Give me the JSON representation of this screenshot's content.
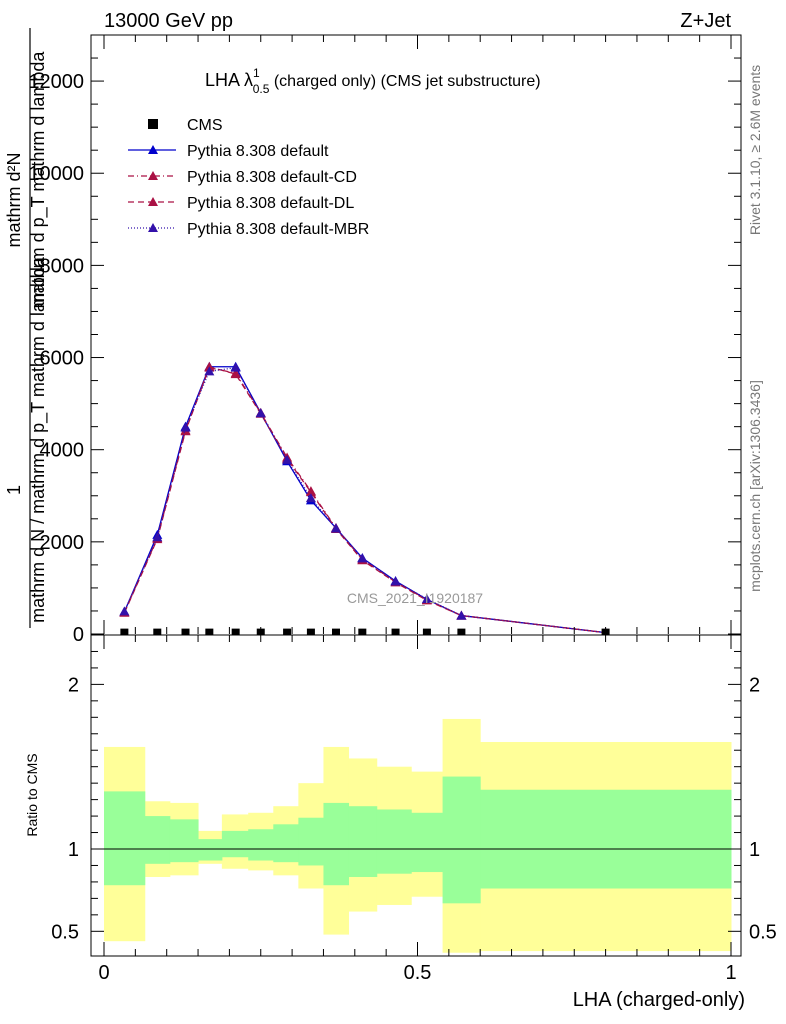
{
  "header": {
    "energy_label": "13000 GeV pp",
    "process_label": "Z+Jet"
  },
  "side_labels": {
    "rivet": "Rivet 3.1.10, ≥ 2.6M events",
    "mcplots": "mcplots.cern.ch [arXiv:1306.3436]"
  },
  "watermark": "CMS_2021_I1920187",
  "chart_data": [
    {
      "type": "line",
      "title": "LHA λ",
      "title_sup": "1",
      "title_sub": "0.5",
      "title_suffix": " (charged only) (CMS jet substructure)",
      "ylabel_numerator": "mathrm d²N",
      "ylabel_denominator": "mathrm d N / mathrm d p_T mathrm d lambda",
      "ylabel_one": "1",
      "ylabel_inner": "mathrm d p_T mathrm d lambda",
      "xlim": [
        0,
        1
      ],
      "ylim": [
        0,
        13000
      ],
      "yticks": [
        0,
        2000,
        4000,
        6000,
        8000,
        10000,
        12000
      ],
      "ytick_labels": [
        "0",
        "2000",
        "4000",
        "6000",
        "8000",
        "10000",
        "12000"
      ],
      "legend_placement": "top-left",
      "data_series": {
        "name": "CMS",
        "x": [
          0.0325,
          0.085,
          0.13,
          0.168,
          0.21,
          0.25,
          0.292,
          0.33,
          0.37,
          0.412,
          0.465,
          0.515,
          0.57,
          0.8
        ],
        "y": [
          30,
          30,
          30,
          30,
          30,
          30,
          30,
          30,
          30,
          30,
          30,
          30,
          30,
          30
        ]
      },
      "series": [
        {
          "name": "Pythia 8.308 default",
          "color": "#0000cc",
          "dash": "",
          "x": [
            0.0325,
            0.085,
            0.13,
            0.168,
            0.21,
            0.25,
            0.292,
            0.33,
            0.37,
            0.412,
            0.465,
            0.515,
            0.57,
            0.8
          ],
          "y": [
            480,
            2150,
            4500,
            5800,
            5800,
            4800,
            3750,
            2900,
            2300,
            1650,
            1150,
            750,
            400,
            30
          ]
        },
        {
          "name": "Pythia 8.308 default-CD",
          "color": "#aa1144",
          "dash": "6,3,1,3",
          "x": [
            0.0325,
            0.085,
            0.13,
            0.168,
            0.21,
            0.25,
            0.292,
            0.33,
            0.37,
            0.412,
            0.465,
            0.515,
            0.57,
            0.8
          ],
          "y": [
            470,
            2080,
            4420,
            5780,
            5660,
            4800,
            3830,
            3100,
            2300,
            1620,
            1130,
            740,
            400,
            30
          ]
        },
        {
          "name": "Pythia 8.308 default-DL",
          "color": "#aa1144",
          "dash": "6,4",
          "x": [
            0.0325,
            0.085,
            0.13,
            0.168,
            0.21,
            0.25,
            0.292,
            0.33,
            0.37,
            0.412,
            0.465,
            0.515,
            0.57,
            0.8
          ],
          "y": [
            460,
            2060,
            4400,
            5800,
            5640,
            4780,
            3800,
            3080,
            2280,
            1600,
            1120,
            730,
            400,
            30
          ]
        },
        {
          "name": "Pythia 8.308 default-MBR",
          "color": "#3311aa",
          "dash": "1,2",
          "x": [
            0.0325,
            0.085,
            0.13,
            0.168,
            0.21,
            0.25,
            0.292,
            0.33,
            0.37,
            0.412,
            0.465,
            0.515,
            0.57,
            0.8
          ],
          "y": [
            490,
            2100,
            4480,
            5700,
            5780,
            4790,
            3780,
            2950,
            2290,
            1640,
            1140,
            760,
            400,
            30
          ]
        }
      ]
    },
    {
      "type": "area",
      "ylabel": "Ratio to CMS",
      "xlabel": "LHA (charged-only)",
      "xlim": [
        0,
        1
      ],
      "ylim": [
        0.35,
        2.3
      ],
      "xticks": [
        0,
        0.5,
        1
      ],
      "xtick_labels": [
        "0",
        "0.5",
        "1"
      ],
      "yticks": [
        0.5,
        1,
        2
      ],
      "ytick_labels": [
        "0.5",
        "1",
        "2"
      ],
      "reference_line": 1,
      "bin_edges": [
        0,
        0.065,
        0.105,
        0.15,
        0.188,
        0.23,
        0.27,
        0.31,
        0.35,
        0.39,
        0.435,
        0.49,
        0.54,
        0.6,
        1.0
      ],
      "stat_band_low": [
        0.78,
        0.91,
        0.92,
        0.93,
        0.95,
        0.93,
        0.92,
        0.9,
        0.78,
        0.83,
        0.85,
        0.86,
        0.67,
        0.76
      ],
      "stat_band_high": [
        1.35,
        1.2,
        1.18,
        1.06,
        1.11,
        1.12,
        1.15,
        1.19,
        1.28,
        1.26,
        1.24,
        1.22,
        1.44,
        1.36
      ],
      "total_band_low": [
        0.44,
        0.83,
        0.84,
        0.91,
        0.88,
        0.87,
        0.84,
        0.76,
        0.48,
        0.62,
        0.66,
        0.71,
        0.37,
        0.38
      ],
      "total_band_high": [
        1.62,
        1.29,
        1.28,
        1.11,
        1.21,
        1.22,
        1.26,
        1.4,
        1.62,
        1.55,
        1.5,
        1.47,
        1.79,
        1.65
      ],
      "stat_band_color": "#99ff99",
      "total_band_color": "#ffff99"
    }
  ]
}
